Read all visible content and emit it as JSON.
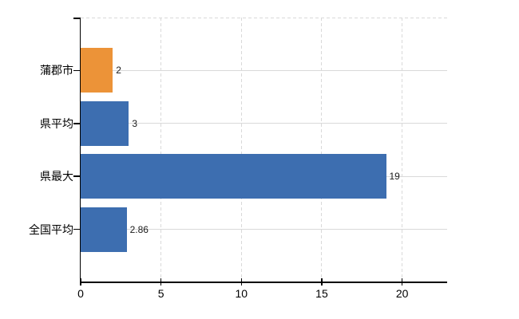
{
  "chart_data": {
    "type": "bar",
    "orientation": "horizontal",
    "title": "",
    "categories": [
      "蒲郡市",
      "県平均",
      "県最大",
      "全国平均"
    ],
    "values": [
      2,
      3,
      19,
      2.86
    ],
    "value_labels": [
      "2",
      "3",
      "19",
      "2.86"
    ],
    "series_colors": [
      "#ec9338",
      "#3d6eb0",
      "#3d6eb0",
      "#3d6eb0"
    ],
    "xlim": [
      0,
      22.8
    ],
    "xticks": [
      0,
      5,
      10,
      15,
      20
    ],
    "xtick_labels": [
      "0",
      "5",
      "10",
      "15",
      "20"
    ],
    "grid": true,
    "legend_position": "none"
  },
  "colors": {
    "background": "#ffffff",
    "axis": "#000000",
    "gridline": "#d9d9d9",
    "value_label_text": "#1a1a1a",
    "category_label_text": "#000000",
    "highlight_bar": "#ec9338",
    "default_bar": "#3d6eb0"
  }
}
